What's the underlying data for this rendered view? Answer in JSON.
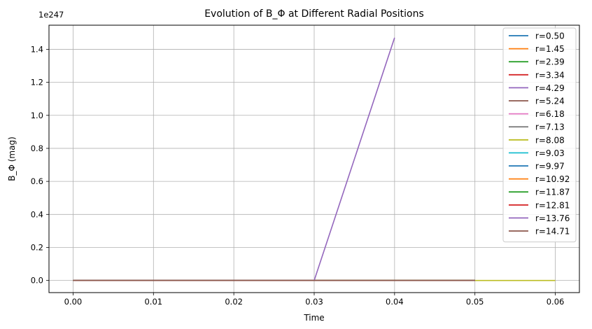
{
  "chart_data": {
    "type": "line",
    "title": "Evolution of B_Φ at Different Radial Positions",
    "xlabel": "Time",
    "ylabel": "B_Φ (mag)",
    "y_offset_label": "1e247",
    "xlim": [
      -0.003,
      0.063
    ],
    "ylim": [
      -0.0736,
      1.546
    ],
    "x_ticks": [
      0.0,
      0.01,
      0.02,
      0.03,
      0.04,
      0.05,
      0.06
    ],
    "x_tick_labels": [
      "0.00",
      "0.01",
      "0.02",
      "0.03",
      "0.04",
      "0.05",
      "0.06"
    ],
    "y_ticks": [
      0.0,
      0.2,
      0.4,
      0.6,
      0.8,
      1.0,
      1.2,
      1.4
    ],
    "y_tick_labels": [
      "0.0",
      "0.2",
      "0.4",
      "0.6",
      "0.8",
      "1.0",
      "1.2",
      "1.4"
    ],
    "grid": true,
    "legend_position": "upper right",
    "series": [
      {
        "name": "r=0.50",
        "color": "#1f77b4",
        "x": [
          0.0,
          0.01,
          0.02,
          0.03,
          0.04,
          0.05
        ],
        "y": [
          0,
          0,
          0,
          0,
          0,
          0
        ]
      },
      {
        "name": "r=1.45",
        "color": "#ff7f0e",
        "x": [
          0.0,
          0.01,
          0.02,
          0.03,
          0.04,
          0.05
        ],
        "y": [
          0,
          0,
          0,
          0,
          0,
          0
        ]
      },
      {
        "name": "r=2.39",
        "color": "#2ca02c",
        "x": [
          0.0,
          0.01,
          0.02,
          0.03,
          0.04,
          0.05
        ],
        "y": [
          0,
          0,
          0,
          0,
          0,
          0
        ]
      },
      {
        "name": "r=3.34",
        "color": "#d62728",
        "x": [
          0.0,
          0.01,
          0.02,
          0.03,
          0.04,
          0.05
        ],
        "y": [
          0,
          0,
          0,
          0,
          0,
          0
        ]
      },
      {
        "name": "r=4.29",
        "color": "#9467bd",
        "x": [
          0.0,
          0.01,
          0.02,
          0.03,
          0.04,
          0.05
        ],
        "y": [
          0,
          0,
          0,
          0,
          0,
          0
        ]
      },
      {
        "name": "r=5.24",
        "color": "#8c564b",
        "x": [
          0.0,
          0.01,
          0.02,
          0.03,
          0.04,
          0.05
        ],
        "y": [
          0,
          0,
          0,
          0,
          0,
          0
        ]
      },
      {
        "name": "r=6.18",
        "color": "#e377c2",
        "x": [
          0.0,
          0.01,
          0.02,
          0.03,
          0.04,
          0.05
        ],
        "y": [
          0,
          0,
          0,
          0,
          0,
          0
        ]
      },
      {
        "name": "r=7.13",
        "color": "#7f7f7f",
        "x": [
          0.0,
          0.01,
          0.02,
          0.03,
          0.04,
          0.05
        ],
        "y": [
          0,
          0,
          0,
          0,
          0,
          0
        ]
      },
      {
        "name": "r=8.08",
        "color": "#bcbd22",
        "x": [
          0.0,
          0.01,
          0.02,
          0.03,
          0.04,
          0.05,
          0.06
        ],
        "y": [
          0,
          0,
          0,
          0,
          0,
          0,
          0
        ]
      },
      {
        "name": "r=9.03",
        "color": "#17becf",
        "x": [
          0.0,
          0.01,
          0.02,
          0.03,
          0.04,
          0.05
        ],
        "y": [
          0,
          0,
          0,
          0,
          0,
          0
        ]
      },
      {
        "name": "r=9.97",
        "color": "#1f77b4",
        "x": [
          0.0,
          0.01,
          0.02,
          0.03,
          0.04,
          0.05
        ],
        "y": [
          0,
          0,
          0,
          0,
          0,
          0
        ]
      },
      {
        "name": "r=10.92",
        "color": "#ff7f0e",
        "x": [
          0.0,
          0.01,
          0.02,
          0.03,
          0.04,
          0.05
        ],
        "y": [
          0,
          0,
          0,
          0,
          0,
          0
        ]
      },
      {
        "name": "r=11.87",
        "color": "#2ca02c",
        "x": [
          0.0,
          0.01,
          0.02,
          0.03,
          0.04,
          0.05
        ],
        "y": [
          0,
          0,
          0,
          0,
          0,
          0
        ]
      },
      {
        "name": "r=12.81",
        "color": "#d62728",
        "x": [
          0.0,
          0.01,
          0.02,
          0.03,
          0.04,
          0.05
        ],
        "y": [
          0,
          0,
          0,
          0,
          0,
          0
        ]
      },
      {
        "name": "r=13.76",
        "color": "#9467bd",
        "x": [
          0.0,
          0.01,
          0.02,
          0.03,
          0.04
        ],
        "y": [
          0,
          0,
          0,
          0,
          1.47
        ]
      },
      {
        "name": "r=14.71",
        "color": "#8c564b",
        "x": [
          0.0,
          0.01,
          0.02,
          0.03,
          0.04,
          0.05
        ],
        "y": [
          0,
          0,
          0,
          0,
          0,
          0
        ]
      }
    ]
  }
}
